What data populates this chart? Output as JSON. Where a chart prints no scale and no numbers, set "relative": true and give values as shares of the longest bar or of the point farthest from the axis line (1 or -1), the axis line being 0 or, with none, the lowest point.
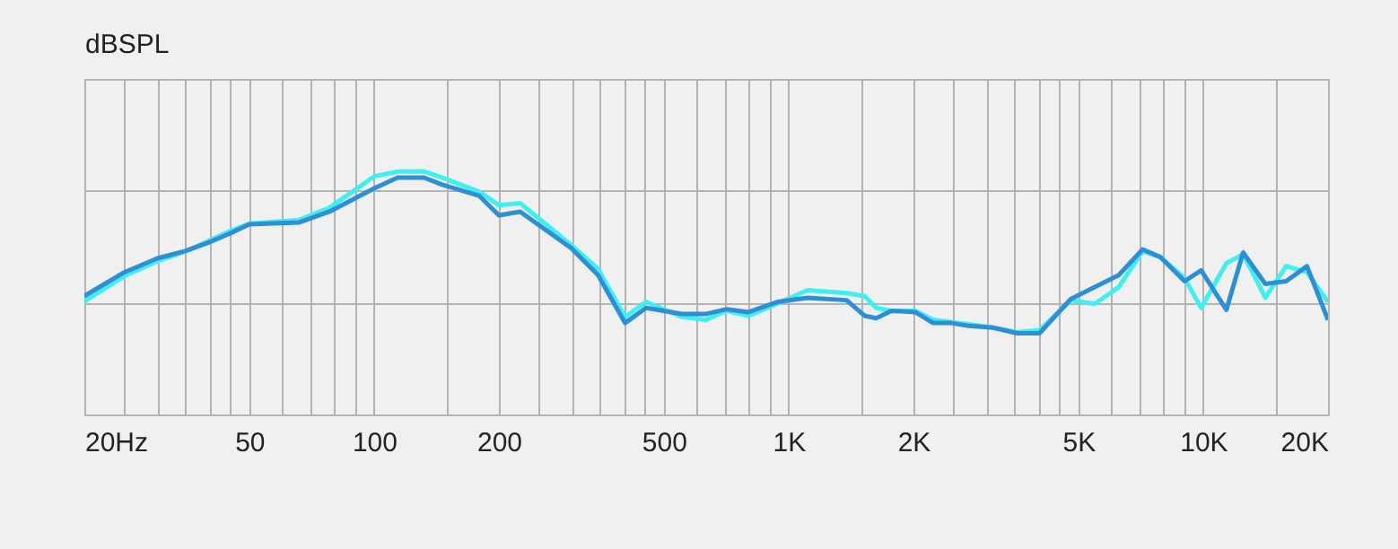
{
  "chart_data": {
    "type": "line",
    "ylabel": "dBSPL",
    "relative": true,
    "log": "x",
    "grid": true,
    "line_style": "solid",
    "marker": "none",
    "xlim": [
      20,
      20000
    ],
    "xticks": [
      {
        "value": 20,
        "label": "20Hz"
      },
      {
        "value": 25,
        "label": null
      },
      {
        "value": 30,
        "label": null
      },
      {
        "value": 35,
        "label": null
      },
      {
        "value": 40,
        "label": null
      },
      {
        "value": 45,
        "label": null
      },
      50,
      {
        "value": 60,
        "label": null
      },
      {
        "value": 70,
        "label": null
      },
      {
        "value": 80,
        "label": null
      },
      {
        "value": 90,
        "label": null
      },
      100,
      {
        "value": 150,
        "label": null
      },
      200,
      {
        "value": 250,
        "label": null
      },
      {
        "value": 300,
        "label": null
      },
      {
        "value": 350,
        "label": null
      },
      {
        "value": 400,
        "label": null
      },
      {
        "value": 450,
        "label": null
      },
      500,
      {
        "value": 600,
        "label": null
      },
      {
        "value": 700,
        "label": null
      },
      {
        "value": 800,
        "label": null
      },
      {
        "value": 900,
        "label": null
      },
      {
        "value": 1000,
        "label": "1K"
      },
      {
        "value": 1500,
        "label": null
      },
      {
        "value": 2000,
        "label": "2K"
      },
      {
        "value": 2500,
        "label": null
      },
      {
        "value": 3000,
        "label": null
      },
      {
        "value": 3500,
        "label": null
      },
      {
        "value": 4000,
        "label": null
      },
      {
        "value": 4500,
        "label": null
      },
      {
        "value": 5000,
        "label": "5K"
      },
      {
        "value": 6000,
        "label": null
      },
      {
        "value": 7000,
        "label": null
      },
      {
        "value": 8000,
        "label": null
      },
      {
        "value": 9000,
        "label": null
      },
      {
        "value": 10000,
        "label": "10K"
      },
      {
        "value": 15000,
        "label": null
      },
      {
        "value": 20000,
        "label": "20K"
      }
    ],
    "series": [
      {
        "color": "#40f0f0",
        "x": [
          20,
          25,
          30,
          35,
          40,
          45,
          50,
          66,
          78,
          100,
          114,
          132,
          146,
          179,
          200,
          225,
          299,
          347,
          403,
          453,
          553,
          630,
          709,
          800,
          940,
          1111,
          1379,
          1524,
          1626,
          1770,
          2020,
          2231,
          2724,
          3111,
          3556,
          4027,
          4796,
          5475,
          6252,
          7144,
          7889,
          9015,
          9886,
          11370,
          12480,
          14120,
          15850,
          17790,
          20000
        ],
        "values": [
          0.465,
          0.57,
          0.63,
          0.67,
          0.715,
          0.755,
          0.785,
          0.8,
          0.85,
          0.979,
          0.999,
          1.0,
          0.974,
          0.917,
          0.861,
          0.869,
          0.697,
          0.598,
          0.401,
          0.463,
          0.401,
          0.389,
          0.426,
          0.406,
          0.456,
          0.511,
          0.499,
          0.487,
          0.438,
          0.426,
          0.426,
          0.389,
          0.371,
          0.357,
          0.339,
          0.347,
          0.47,
          0.455,
          0.524,
          0.671,
          0.647,
          0.561,
          0.438,
          0.622,
          0.659,
          0.48,
          0.61,
          0.585,
          0.463
        ]
      },
      {
        "color": "#2e8ed6",
        "x": [
          20,
          25,
          30,
          35,
          40,
          45,
          50,
          66,
          78,
          100,
          114,
          132,
          146,
          179,
          200,
          225,
          299,
          347,
          403,
          453,
          553,
          630,
          709,
          800,
          940,
          1111,
          1379,
          1524,
          1626,
          1770,
          2020,
          2231,
          2466,
          2724,
          3111,
          3556,
          4027,
          4796,
          5475,
          6252,
          7144,
          7889,
          9015,
          9886,
          11370,
          12480,
          14120,
          15850,
          17790,
          20000
        ],
        "values": [
          0.487,
          0.585,
          0.642,
          0.672,
          0.708,
          0.745,
          0.782,
          0.79,
          0.834,
          0.93,
          0.974,
          0.974,
          0.945,
          0.9,
          0.819,
          0.834,
          0.684,
          0.573,
          0.376,
          0.438,
          0.413,
          0.413,
          0.433,
          0.421,
          0.463,
          0.48,
          0.47,
          0.406,
          0.396,
          0.426,
          0.421,
          0.376,
          0.376,
          0.364,
          0.357,
          0.334,
          0.334,
          0.475,
          0.524,
          0.573,
          0.679,
          0.647,
          0.548,
          0.593,
          0.43,
          0.666,
          0.537,
          0.548,
          0.61,
          0.389
        ]
      }
    ]
  }
}
